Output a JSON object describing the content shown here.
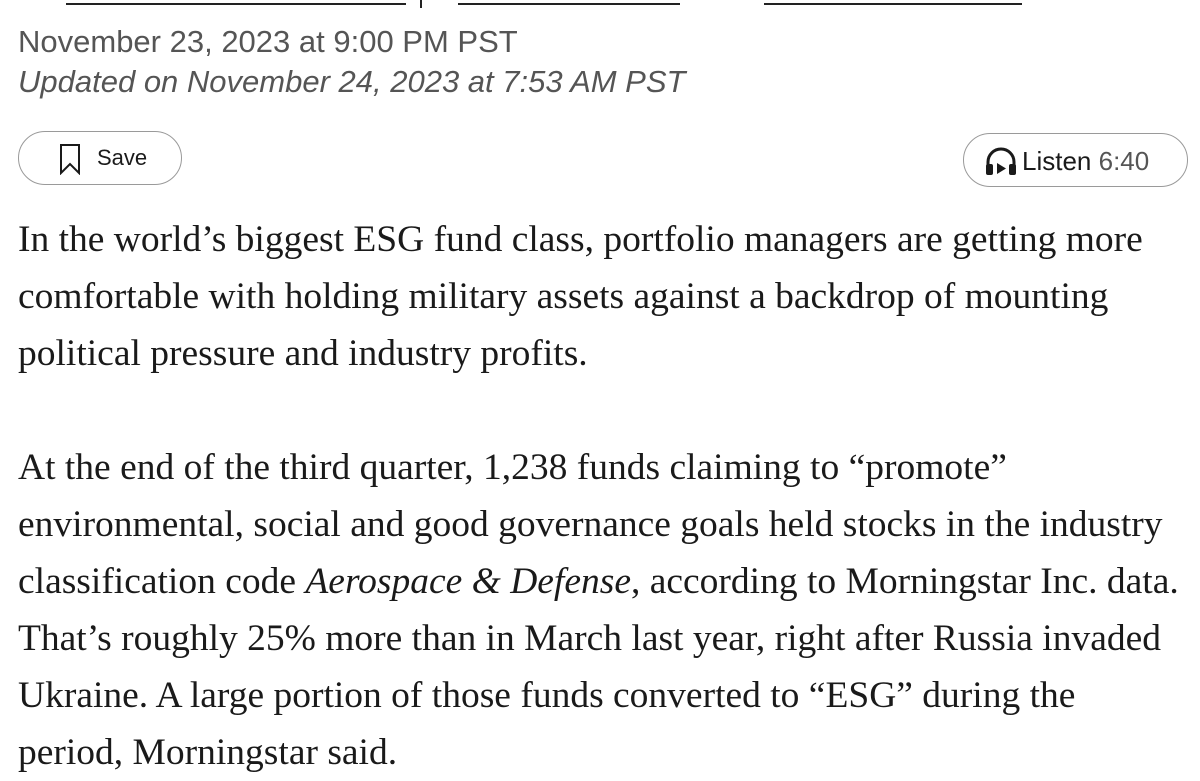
{
  "article": {
    "published": "November 23, 2023 at 9:00 PM PST",
    "updated": "Updated on November 24, 2023 at 7:53 AM PST",
    "toolbar": {
      "save_label": "Save",
      "save_icon": "bookmark-icon",
      "listen_label": "Listen",
      "listen_duration": "6:40",
      "listen_icon": "headphones-icon"
    },
    "paragraph1": "In the world’s biggest ESG fund class, portfolio managers are getting more comfortable with holding military assets against a backdrop of mounting political pressure and industry profits.",
    "paragraph2": {
      "before": "At the end of the third quarter, 1,238 funds claiming to “promote” environmental, social and good governance goals held stocks in the industry classification code ",
      "emphasis": "Aerospace & Defense",
      "after": ", according to Morningstar Inc. data. That’s roughly 25% more than in March last year, right after Russia invaded Ukraine. A large portion of those funds converted to “ESG” during the period, Morningstar said."
    }
  }
}
